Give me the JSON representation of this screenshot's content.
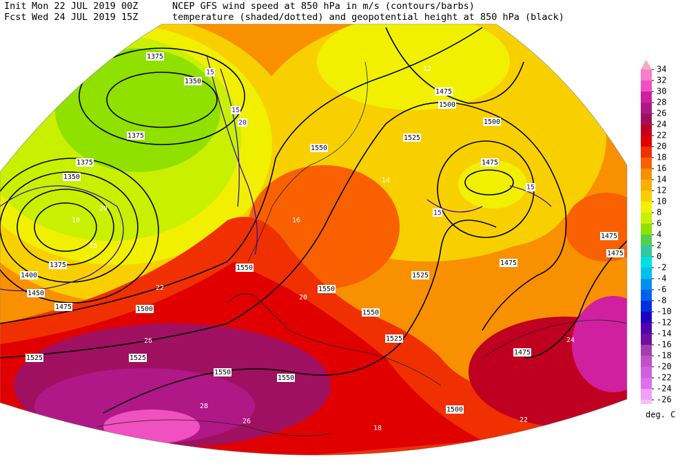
{
  "header": {
    "init_label": "Init",
    "init_time": "Mon 22 JUL 2019 00Z",
    "description_1": "NCEP GFS wind speed at 850 hPa in m/s (contours/barbs)",
    "fcst_label": "Fcst",
    "fcst_time": "Wed 24 JUL 2019 15Z",
    "description_2": "temperature (shaded/dotted) and geopotential height at 850 hPa (black)"
  },
  "colorbar": {
    "levels": [
      34,
      32,
      30,
      28,
      26,
      24,
      22,
      20,
      18,
      16,
      14,
      12,
      10,
      8,
      6,
      4,
      2,
      0,
      -2,
      -4,
      -6,
      -8,
      -10,
      -12,
      -14,
      -16,
      -18,
      -20,
      -22,
      -24,
      -26
    ],
    "colors": [
      "#f9a8c0",
      "#f580c8",
      "#f050c0",
      "#d020a0",
      "#b01888",
      "#a01060",
      "#c00020",
      "#e00000",
      "#f03000",
      "#f86000",
      "#f89000",
      "#f8b000",
      "#f8d000",
      "#f0f000",
      "#c8f000",
      "#90e000",
      "#50d050",
      "#30c8a0",
      "#00e0e0",
      "#00c0f0",
      "#0090f0",
      "#0060f0",
      "#0030e0",
      "#2000c0",
      "#5000b0",
      "#7010a0",
      "#a040b0",
      "#c050c8",
      "#d060e0",
      "#e070f0",
      "#f0a0f8",
      "#f4c0f8"
    ],
    "unit": "deg. C"
  },
  "map_labels": {
    "heights": [
      1375,
      1350,
      1375,
      1375,
      1350,
      1375,
      1400,
      1450,
      1475,
      1500,
      1525,
      1525,
      1550,
      1550,
      1550,
      1550,
      1550,
      1525,
      1475,
      1500,
      1525,
      1475,
      1475,
      1475,
      1475,
      1500,
      1500,
      1475,
      1525,
      1550
    ],
    "temperatures": [
      10,
      20,
      25,
      28,
      26,
      22,
      24,
      16,
      12,
      18,
      26,
      22,
      20,
      14
    ],
    "winds": [
      15,
      15,
      20,
      15,
      15
    ]
  }
}
